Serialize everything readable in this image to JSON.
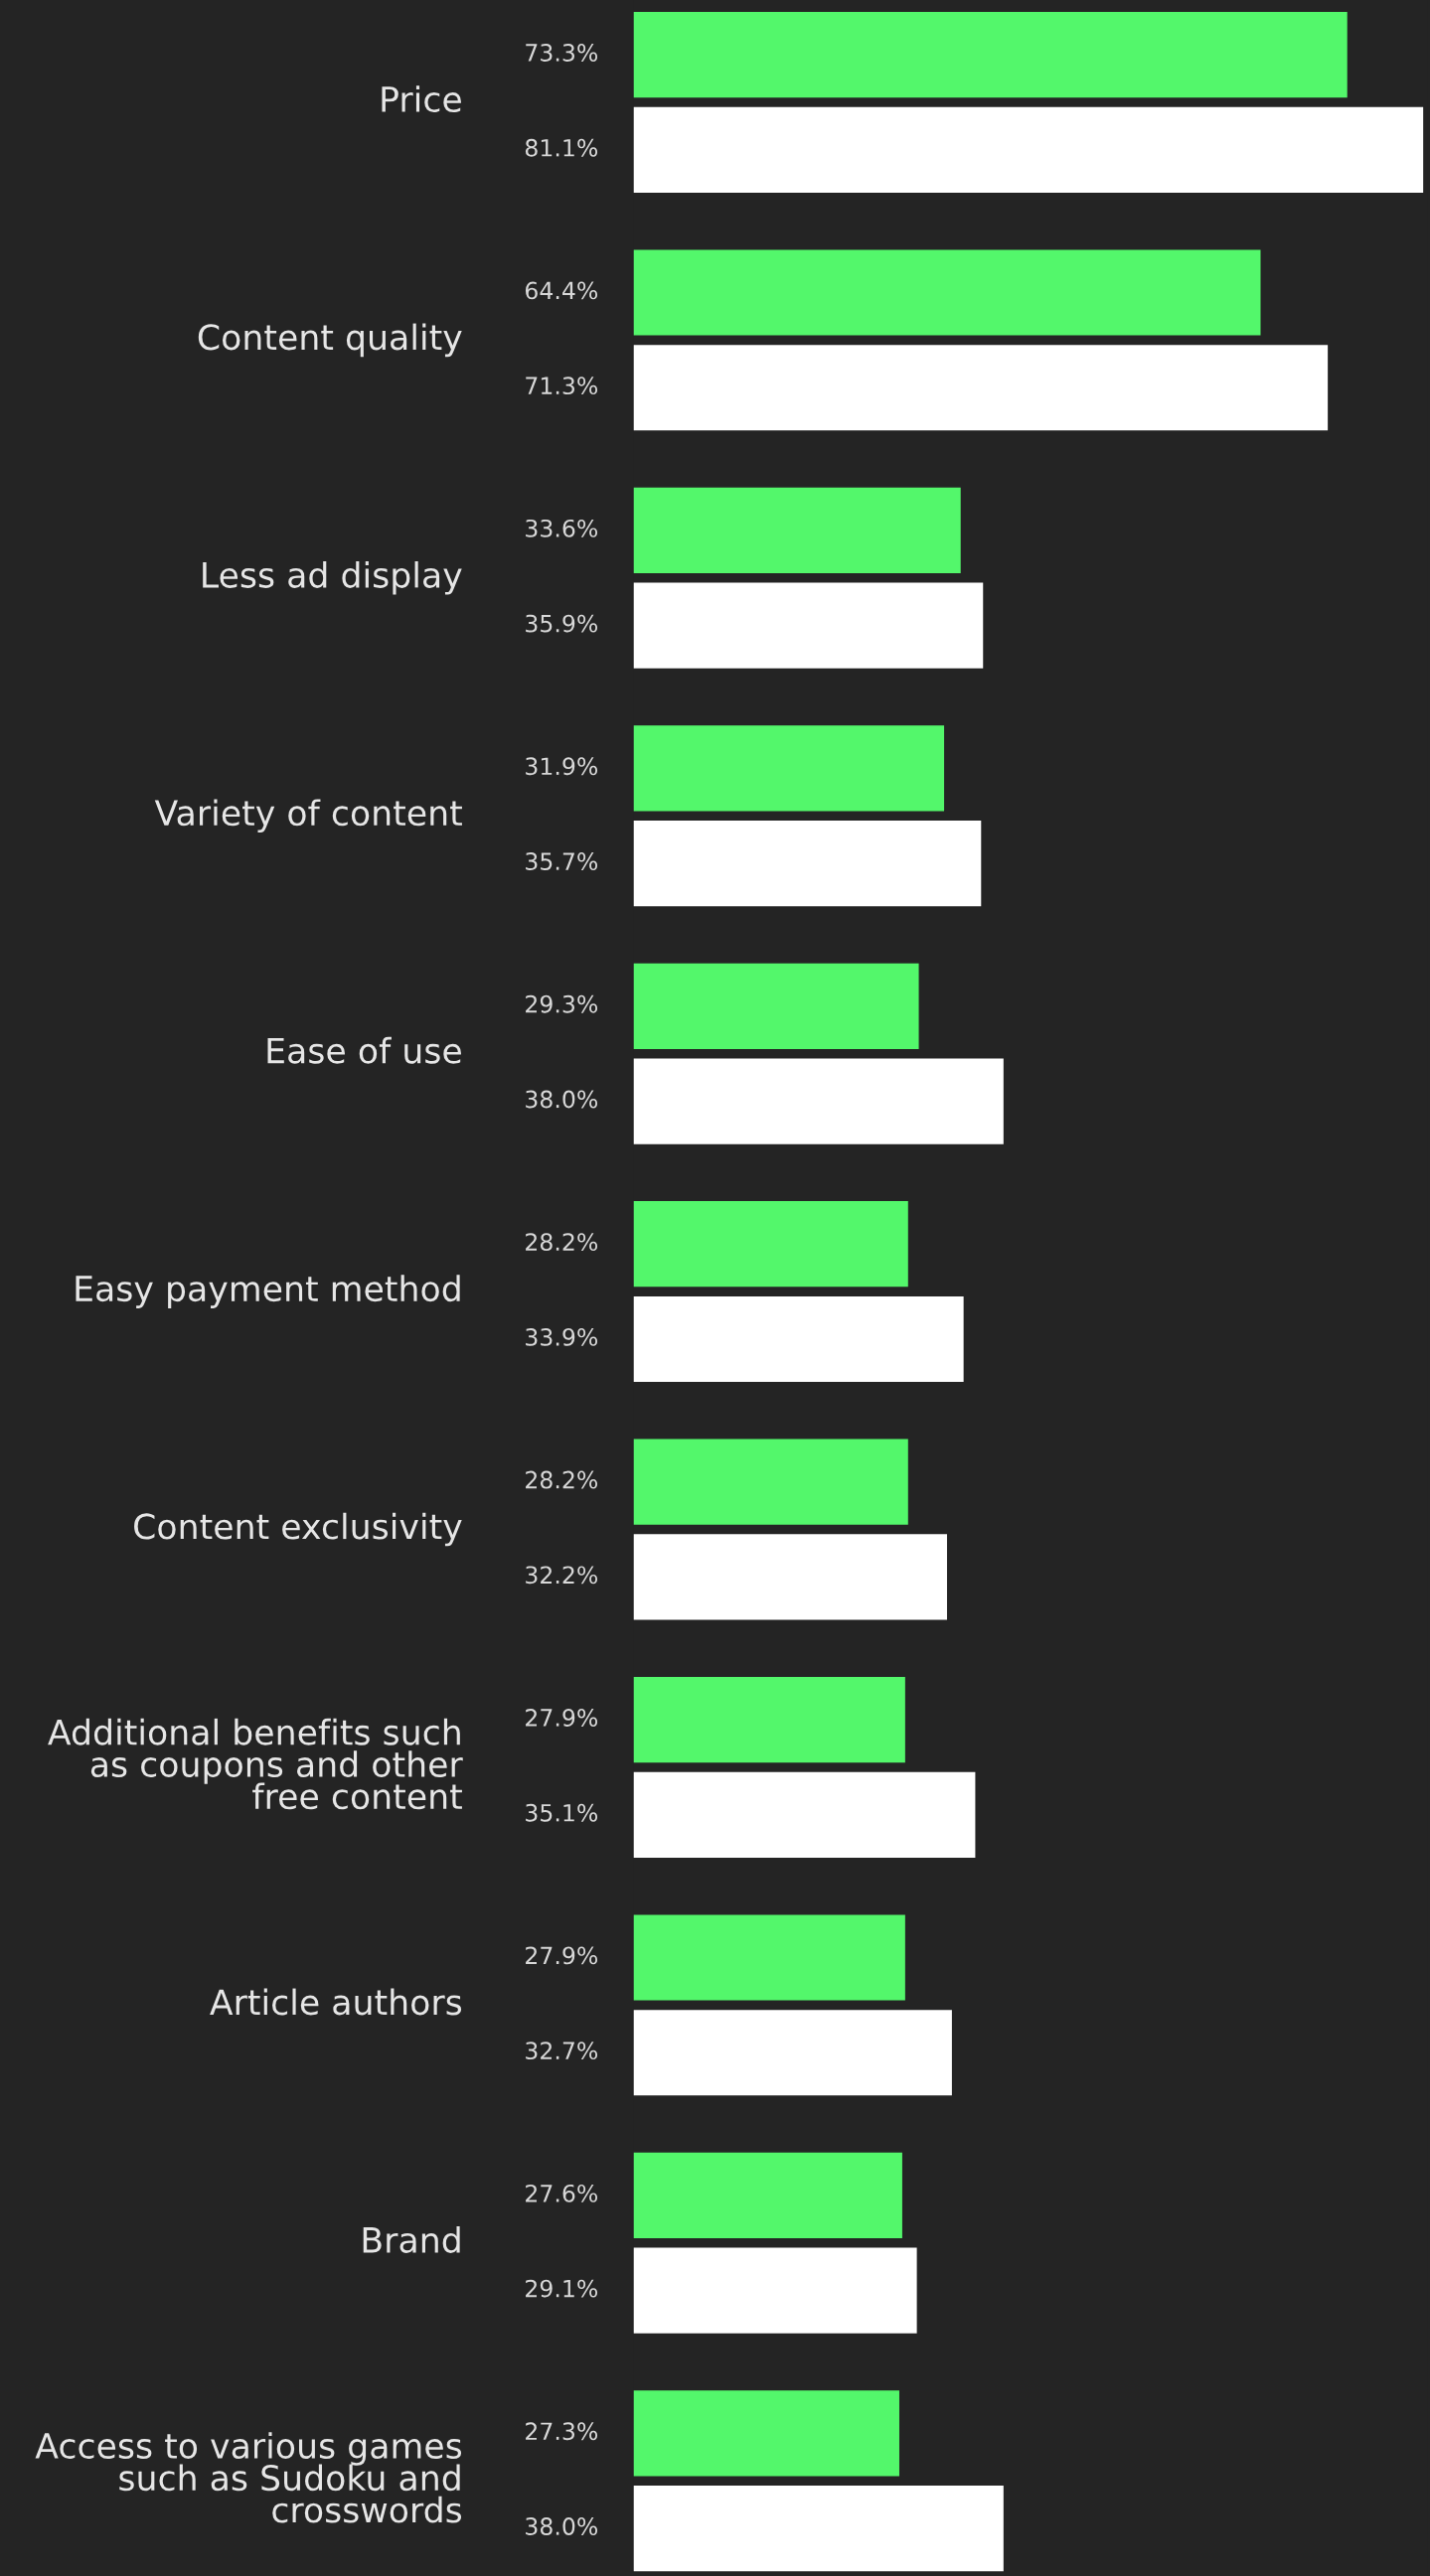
{
  "chart_data": {
    "type": "bar",
    "orientation": "horizontal",
    "categories": [
      "Price",
      "Content quality",
      "Less ad display",
      "Variety of content",
      "Ease of use",
      "Easy payment method",
      "Content exclusivity",
      "Additional benefits such\nas coupons and other\nfree content",
      "Article authors",
      "Brand",
      "Access to various games\nsuch as Sudoku and\ncrosswords"
    ],
    "series": [
      {
        "color": "#53f76b",
        "values": [
          73.3,
          64.4,
          33.6,
          31.9,
          29.3,
          28.2,
          28.2,
          27.9,
          27.9,
          27.6,
          27.3
        ],
        "value_labels": [
          "73.3%",
          "64.4%",
          "33.6%",
          "31.9%",
          "29.3%",
          "28.2%",
          "28.2%",
          "27.9%",
          "27.9%",
          "27.6%",
          "27.3%"
        ]
      },
      {
        "color": "#ffffff",
        "values": [
          81.1,
          71.3,
          35.9,
          35.7,
          38.0,
          33.9,
          32.2,
          35.1,
          32.7,
          29.1,
          38.0
        ],
        "value_labels": [
          "81.1%",
          "71.3%",
          "35.9%",
          "35.7%",
          "38.0%",
          "33.9%",
          "32.2%",
          "35.1%",
          "32.7%",
          "29.1%",
          "38.0%"
        ]
      }
    ]
  }
}
